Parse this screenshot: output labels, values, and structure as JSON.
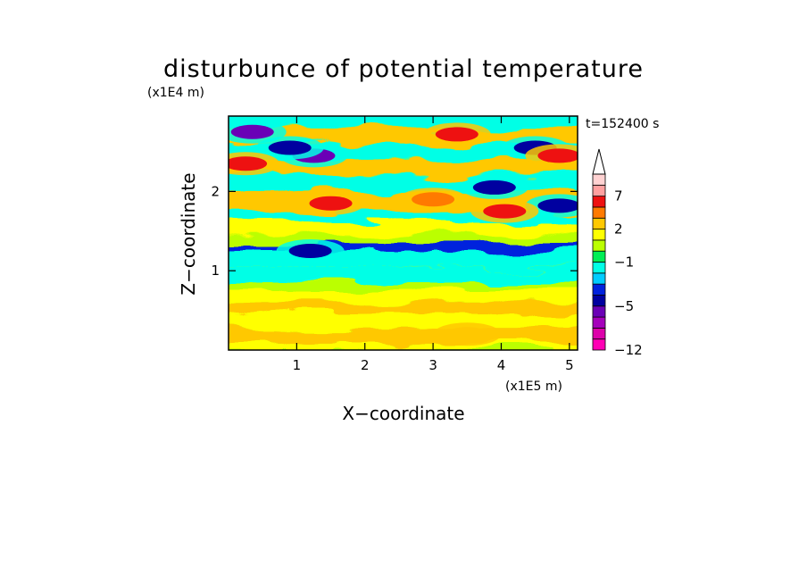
{
  "chart_data": {
    "type": "heatmap",
    "title": "disturbunce of potential temperature",
    "time_label": "t=152400 s",
    "xlabel": "X−coordinate",
    "ylabel": "Z−coordinate",
    "x_unit": "(x1E5 m)",
    "y_unit": "(x1E4 m)",
    "xlim": [
      0,
      5.12
    ],
    "ylim": [
      0,
      2.95
    ],
    "x_ticks": [
      {
        "value": 1,
        "label": "1"
      },
      {
        "value": 2,
        "label": "2"
      },
      {
        "value": 3,
        "label": "3"
      },
      {
        "value": 4,
        "label": "4"
      },
      {
        "value": 5,
        "label": "5"
      }
    ],
    "y_ticks": [
      {
        "value": 1,
        "label": "1"
      },
      {
        "value": 2,
        "label": "2"
      }
    ],
    "colorbar": {
      "levels": [
        -12,
        -10,
        -8,
        -6,
        -5,
        -4,
        -3,
        -2,
        -1,
        0,
        1,
        2,
        3,
        5,
        7,
        9,
        11
      ],
      "colors": [
        "#ff00b4",
        "#dd00aa",
        "#a500bb",
        "#6a00b6",
        "#0000a0",
        "#0022dd",
        "#00ccff",
        "#00ffe6",
        "#00ee55",
        "#bbff00",
        "#ffff00",
        "#ffc800",
        "#ff7a00",
        "#ee1111",
        "#ffa0a0",
        "#ffd2d2"
      ],
      "extend_color": "#ffffff",
      "labels": [
        {
          "value": -12,
          "text": "−12"
        },
        {
          "value": -5,
          "text": "−5"
        },
        {
          "value": -1,
          "text": "−1"
        },
        {
          "value": 2,
          "text": "2"
        },
        {
          "value": 7,
          "text": "7"
        }
      ]
    },
    "features": [
      {
        "x": 0.35,
        "z": 2.75,
        "value": -6
      },
      {
        "x": 1.25,
        "z": 2.45,
        "value": -6
      },
      {
        "x": 3.9,
        "z": 2.05,
        "value": -5
      },
      {
        "x": 4.85,
        "z": 1.82,
        "value": -5
      },
      {
        "x": 0.9,
        "z": 2.55,
        "value": -5
      },
      {
        "x": 4.5,
        "z": 2.55,
        "value": -5
      },
      {
        "x": 1.5,
        "z": 1.85,
        "value": 6
      },
      {
        "x": 0.25,
        "z": 2.35,
        "value": 5
      },
      {
        "x": 3.35,
        "z": 2.72,
        "value": 5
      },
      {
        "x": 4.05,
        "z": 1.75,
        "value": 5
      },
      {
        "x": 4.85,
        "z": 2.45,
        "value": 5
      },
      {
        "x": 3.0,
        "z": 1.9,
        "value": 3
      },
      {
        "x": 1.2,
        "z": 1.25,
        "value": -5
      },
      {
        "x": 3.5,
        "z": 0.2,
        "value": 2
      }
    ]
  }
}
